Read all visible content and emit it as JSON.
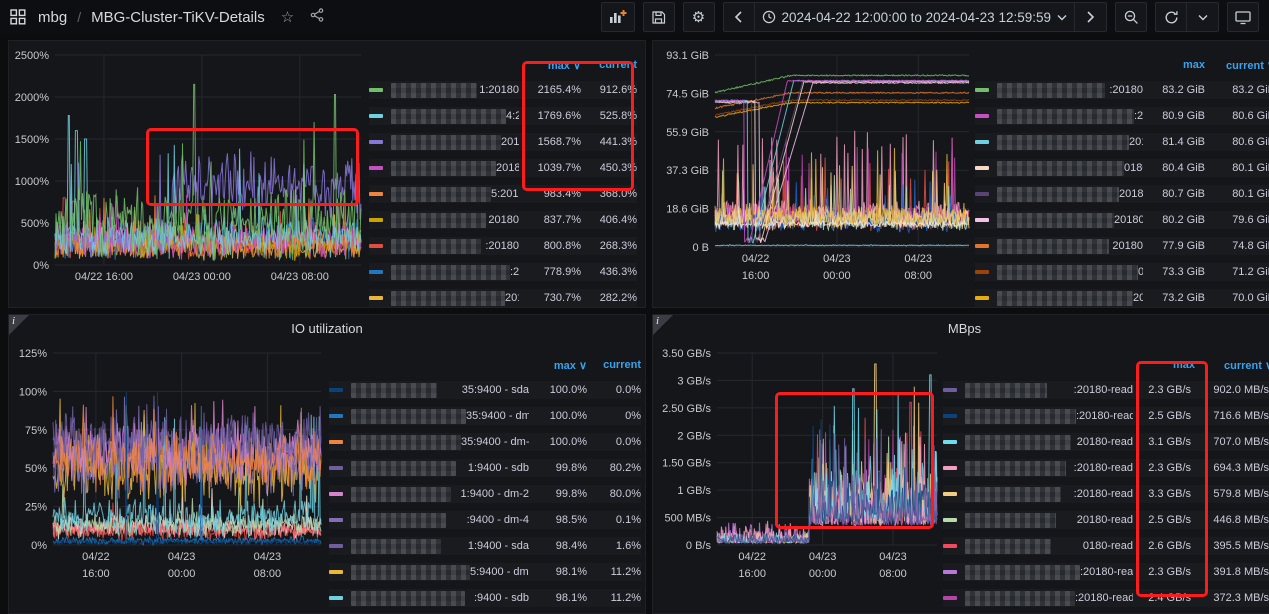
{
  "navbar": {
    "breadcrumb": {
      "app": "mbg",
      "separator": "/",
      "dashboard": "MBG-Cluster-TiKV-Details"
    },
    "time_range": "2024-04-22 12:00:00 to 2024-04-23 12:59:59"
  },
  "legend_headers": {
    "max": "max",
    "current": "current",
    "sort_arrow": "∨"
  },
  "chart_data": [
    {
      "type": "line",
      "title": "",
      "names_redacted": true,
      "unit": "percent",
      "ylim": [
        0,
        2500
      ],
      "y_ticks": [
        "0%",
        "500%",
        "1000%",
        "1500%",
        "2000%",
        "2500%"
      ],
      "x_ticks": [
        "04/22 16:00",
        "04/23 00:00",
        "04/23 08:00"
      ],
      "legend": {
        "columns": [
          "max",
          "current"
        ],
        "sorted_by": "max",
        "legend_position": "right"
      },
      "grid": true,
      "series": [
        {
          "suffix": "1:20180",
          "color": "#73BF69",
          "max": "2165.4%",
          "current": "912.6%",
          "max_value": 2165.4,
          "current_value": 912.6
        },
        {
          "suffix": "4:20180",
          "color": "#6ED0E0",
          "max": "1769.6%",
          "current": "525.8%",
          "max_value": 1769.6,
          "current_value": 525.8
        },
        {
          "suffix": "20180",
          "color": "#8877D9",
          "max": "1568.7%",
          "current": "441.3%",
          "max_value": 1568.7,
          "current_value": 441.3
        },
        {
          "suffix": "20180",
          "color": "#C74FC4",
          "max": "1039.7%",
          "current": "450.3%",
          "max_value": 1039.7,
          "current_value": 450.3
        },
        {
          "suffix": "5:20180",
          "color": "#EF843C",
          "max": "983.4%",
          "current": "368.0%",
          "max_value": 983.4,
          "current_value": 368.0
        },
        {
          "suffix": "20180",
          "color": "#CCA300",
          "max": "837.7%",
          "current": "406.4%",
          "max_value": 837.7,
          "current_value": 406.4
        },
        {
          "suffix": ":20180",
          "color": "#E24D42",
          "max": "800.8%",
          "current": "268.3%",
          "max_value": 800.8,
          "current_value": 268.3
        },
        {
          "suffix": ":20180",
          "color": "#1F78C1",
          "max": "778.9%",
          "current": "436.3%",
          "max_value": 778.9,
          "current_value": 436.3
        },
        {
          "suffix": "20180",
          "color": "#EAB839",
          "max": "730.7%",
          "current": "282.2%",
          "max_value": 730.7,
          "current_value": 282.2
        }
      ],
      "annotations": [
        "red rectangle drawn over mid-right chart region",
        "red rectangle drawn around max/current legend columns of top 4 rows"
      ]
    },
    {
      "type": "line",
      "title": "",
      "names_redacted": true,
      "unit": "bytes",
      "ylim": [
        0,
        93.1
      ],
      "y_ticks": [
        "0 B",
        "18.6 GiB",
        "37.3 GiB",
        "55.9 GiB",
        "74.5 GiB",
        "93.1 GiB"
      ],
      "x_ticks": [
        "04/22|16:00",
        "04/23|00:00",
        "04/23|08:00"
      ],
      "legend": {
        "columns": [
          "max",
          "current"
        ],
        "sorted_by": "current",
        "legend_position": "right"
      },
      "grid": true,
      "series": [
        {
          "suffix": ":20180",
          "color": "#73BF69",
          "max": "83.2 GiB",
          "current": "83.2 GiB",
          "max_value": 83.2,
          "current_value": 83.2
        },
        {
          "suffix": ":20180",
          "color": "#C74FC4",
          "max": "80.9 GiB",
          "current": "80.6 GiB",
          "max_value": 80.9,
          "current_value": 80.6
        },
        {
          "suffix": "20180",
          "color": "#6ED0E0",
          "max": "81.4 GiB",
          "current": "80.6 GiB",
          "max_value": 81.4,
          "current_value": 80.6
        },
        {
          "suffix": "0180",
          "color": "#F7D9C4",
          "max": "80.4 GiB",
          "current": "80.1 GiB",
          "max_value": 80.4,
          "current_value": 80.1
        },
        {
          "suffix": "20180",
          "color": "#584477",
          "max": "80.7 GiB",
          "current": "80.1 GiB",
          "max_value": 80.7,
          "current_value": 80.1
        },
        {
          "suffix": "20180",
          "color": "#F2C3E7",
          "max": "80.2 GiB",
          "current": "79.6 GiB",
          "max_value": 80.2,
          "current_value": 79.6
        },
        {
          "suffix": "20180",
          "color": "#E0752D",
          "max": "77.9 GiB",
          "current": "74.8 GiB",
          "max_value": 77.9,
          "current_value": 74.8
        },
        {
          "suffix": "0180",
          "color": "#99440A",
          "max": "73.3 GiB",
          "current": "71.2 GiB",
          "max_value": 73.3,
          "current_value": 71.2
        },
        {
          "suffix": "20180",
          "color": "#E5AC0E",
          "max": "73.2 GiB",
          "current": "70.0 GiB",
          "max_value": 73.2,
          "current_value": 70.0
        }
      ],
      "annotations": []
    },
    {
      "type": "line",
      "title": "IO utilization",
      "names_redacted": true,
      "unit": "percent",
      "ylim": [
        0,
        125
      ],
      "y_ticks": [
        "0%",
        "25%",
        "50%",
        "75%",
        "100%",
        "125%"
      ],
      "x_ticks": [
        "04/22|16:00",
        "04/23|00:00",
        "04/23|08:00"
      ],
      "legend": {
        "columns": [
          "max",
          "current"
        ],
        "sorted_by": "max",
        "legend_position": "right"
      },
      "grid": true,
      "series": [
        {
          "suffix": "35:9400 - sda",
          "color": "#0A437C",
          "max": "100.0%",
          "current": "0.0%",
          "max_value": 100.0,
          "current_value": 0.0
        },
        {
          "suffix": "35:9400 - dm-2",
          "color": "#1F78C1",
          "max": "100.0%",
          "current": "0%",
          "max_value": 100.0,
          "current_value": 0.0
        },
        {
          "suffix": "35:9400 - dm-0",
          "color": "#EF843C",
          "max": "100.0%",
          "current": "0.0%",
          "max_value": 100.0,
          "current_value": 0.0
        },
        {
          "suffix": "1:9400 - sdb",
          "color": "#705DA0",
          "max": "99.8%",
          "current": "80.2%",
          "max_value": 99.8,
          "current_value": 80.2
        },
        {
          "suffix": "1:9400 - dm-2",
          "color": "#D683CE",
          "max": "99.8%",
          "current": "80.0%",
          "max_value": 99.8,
          "current_value": 80.0
        },
        {
          "suffix": ":9400 - dm-4",
          "color": "#806EB7",
          "max": "98.5%",
          "current": "0.1%",
          "max_value": 98.5,
          "current_value": 0.1
        },
        {
          "suffix": "1:9400 - sda",
          "color": "#705DA0",
          "max": "98.4%",
          "current": "1.6%",
          "max_value": 98.4,
          "current_value": 1.6
        },
        {
          "suffix": "5:9400 - dm-3",
          "color": "#EAB839",
          "max": "98.1%",
          "current": "11.2%",
          "max_value": 98.1,
          "current_value": 11.2
        },
        {
          "suffix": ":9400 - sdb",
          "color": "#6ED0E0",
          "max": "98.1%",
          "current": "11.2%",
          "max_value": 98.1,
          "current_value": 11.2
        }
      ],
      "annotations": []
    },
    {
      "type": "line",
      "title": "MBps",
      "names_redacted": true,
      "unit": "bytes/sec",
      "ylim": [
        0,
        3.5
      ],
      "y_ticks": [
        "0 B/s",
        "500 MB/s",
        "1 GB/s",
        "1.50 GB/s",
        "2 GB/s",
        "2.50 GB/s",
        "3 GB/s",
        "3.50 GB/s"
      ],
      "x_ticks": [
        "04/22|16:00",
        "04/23|00:00",
        "04/23|08:00"
      ],
      "legend": {
        "columns": [
          "max",
          "current"
        ],
        "sorted_by": "current",
        "legend_position": "right"
      },
      "grid": true,
      "series": [
        {
          "suffix": ":20180-read",
          "color": "#705DA0",
          "max": "2.3 GB/s",
          "current": "902.0 MB/s",
          "max_value": 2.3,
          "current_value": 0.902
        },
        {
          "suffix": ":20180-read",
          "color": "#0A437C",
          "max": "2.5 GB/s",
          "current": "716.6 MB/s",
          "max_value": 2.5,
          "current_value": 0.7166
        },
        {
          "suffix": "20180-read",
          "color": "#70DBED",
          "max": "3.1 GB/s",
          "current": "707.0 MB/s",
          "max_value": 3.1,
          "current_value": 0.707
        },
        {
          "suffix": ":20180-read",
          "color": "#F29FC1",
          "max": "2.3 GB/s",
          "current": "694.3 MB/s",
          "max_value": 2.3,
          "current_value": 0.6943
        },
        {
          "suffix": ":20180-read",
          "color": "#F2CC85",
          "max": "3.3 GB/s",
          "current": "579.8 MB/s",
          "max_value": 3.3,
          "current_value": 0.5798
        },
        {
          "suffix": "20180-read",
          "color": "#B7DBAB",
          "max": "2.5 GB/s",
          "current": "446.8 MB/s",
          "max_value": 2.5,
          "current_value": 0.4468
        },
        {
          "suffix": "0180-read",
          "color": "#F2495C",
          "max": "2.6 GB/s",
          "current": "395.5 MB/s",
          "max_value": 2.6,
          "current_value": 0.3955
        },
        {
          "suffix": ":20180-read",
          "color": "#B877D9",
          "max": "2.3 GB/s",
          "current": "391.8 MB/s",
          "max_value": 2.3,
          "current_value": 0.3918
        },
        {
          "suffix": ":20180-read",
          "color": "#BA43A9",
          "max": "2.4 GB/s",
          "current": "372.3 MB/s",
          "max_value": 2.4,
          "current_value": 0.3723
        }
      ],
      "annotations": [
        "red rectangle drawn over right-half spiky region of chart",
        "red rectangle drawn around max legend column"
      ]
    }
  ]
}
